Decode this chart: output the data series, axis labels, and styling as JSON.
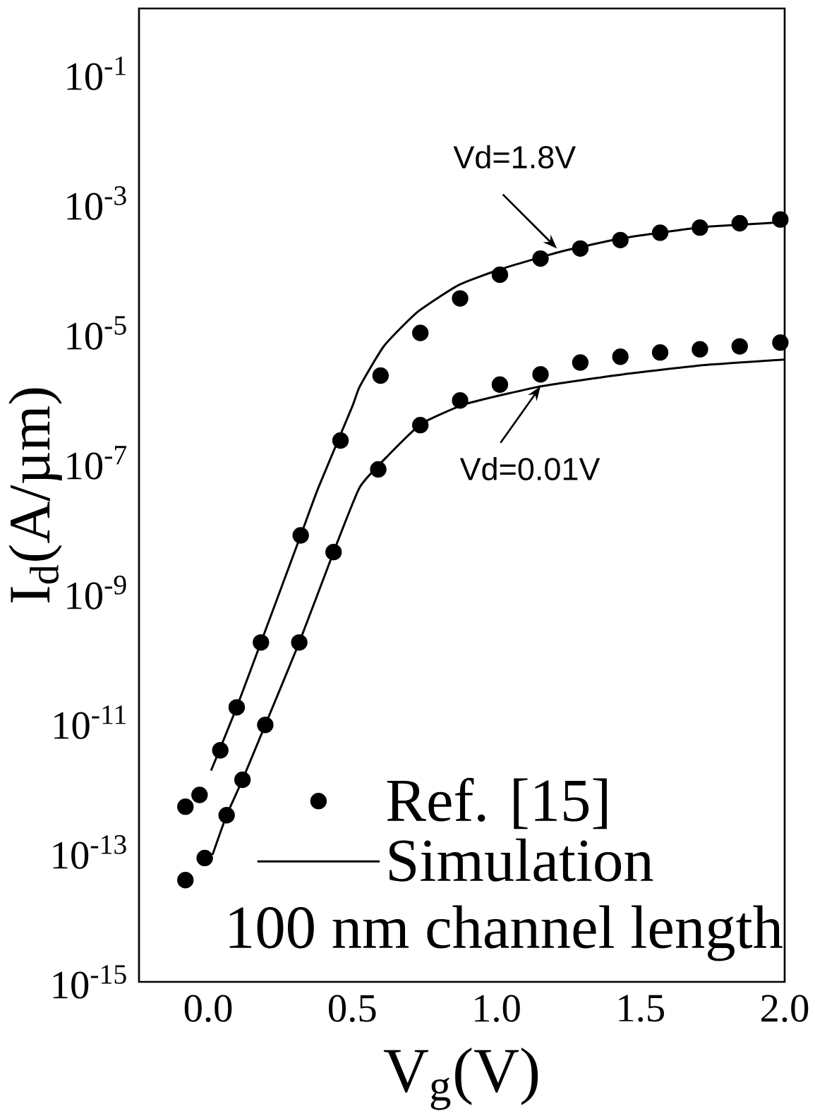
{
  "chart_data": {
    "type": "line",
    "xlabel": "V$_{g}$(V)",
    "ylabel": "I$_{d}$(A/µm)",
    "log": "y",
    "legend": "bottom",
    "xlim": [
      -0.24,
      2.0
    ],
    "xticks": [
      {
        "value": 0,
        "label": "0.0"
      },
      0.5,
      {
        "value": 1,
        "label": "1.0"
      },
      1.5,
      {
        "value": 2,
        "label": "2.0"
      }
    ],
    "ylim": [
      1e-15,
      1
    ],
    "yticks": [
      {
        "value": 1e-15,
        "label": "10$^{-15}$"
      },
      {
        "value": 1e-13,
        "label": "10$^{-13}$"
      },
      {
        "value": 1e-11,
        "label": "10$^{-11}$"
      },
      {
        "value": 1e-09,
        "label": "10$^{-9}$"
      },
      {
        "value": 1e-07,
        "label": "10$^{-7}$"
      },
      {
        "value": 1e-05,
        "label": "10$^{-5}$"
      },
      {
        "value": 0.001,
        "label": "10$^{-3}$"
      },
      {
        "value": 0.1,
        "label": "10$^{-1}$"
      }
    ],
    "series": [
      {
        "name": "Ref. [15]",
        "type": "scatter",
        "marker": "circle",
        "color": "#000000",
        "x": [
          -0.079,
          -0.03,
          0.042,
          0.099,
          0.183,
          0.321,
          0.459,
          0.598,
          0.736,
          0.874,
          1.012,
          1.153,
          1.291,
          1.43,
          1.568,
          1.706,
          1.844,
          1.985
        ],
        "values": [
          5e-13,
          7.6e-13,
          3.7e-12,
          1.7e-11,
          1.7e-10,
          7.6e-09,
          2.2e-07,
          2.2e-06,
          1e-05,
          3.4e-05,
          7.9e-05,
          0.00014,
          0.0002,
          0.00027,
          0.00035,
          0.00042,
          0.00049,
          0.00056
        ]
      },
      {
        "type": "scatter",
        "marker": "circle",
        "color": "#000000",
        "x": [
          -0.079,
          -0.012,
          0.064,
          0.119,
          0.198,
          0.316,
          0.435,
          0.59,
          0.736,
          0.874,
          1.012,
          1.153,
          1.291,
          1.43,
          1.568,
          1.706,
          1.844,
          1.985
        ],
        "values": [
          3.7e-14,
          8.1e-14,
          3.7e-13,
          1.3e-12,
          9.1e-12,
          1.7e-10,
          4.2e-09,
          7.9e-08,
          3.8e-07,
          9.1e-07,
          1.6e-06,
          2.3e-06,
          3.5e-06,
          4.3e-06,
          5e-06,
          5.6e-06,
          6.2e-06,
          7.1e-06
        ]
      },
      {
        "name": "Simulation",
        "marker": "none",
        "line_style": "solid",
        "color": "#000000",
        "x": [
          0.01,
          0.099,
          0.183,
          0.321,
          0.383,
          0.499,
          0.526,
          0.61,
          0.726,
          0.867,
          1.012,
          1.225,
          1.44,
          1.723,
          2.0
        ],
        "values": [
          1.8e-12,
          1.7e-11,
          1.7e-10,
          7.6e-09,
          4.2e-08,
          7.2e-07,
          1.5e-06,
          6.3e-06,
          2.1e-05,
          5.4e-05,
          9.5e-05,
          0.00018,
          0.00029,
          0.00043,
          0.00051
        ]
      },
      {
        "marker": "none",
        "line_style": "solid",
        "color": "#000000",
        "x": [
          0.015,
          0.064,
          0.119,
          0.198,
          0.316,
          0.435,
          0.526,
          0.625,
          0.741,
          0.896,
          1.153,
          1.44,
          1.723,
          2.0
        ],
        "values": [
          9.1e-14,
          3.7e-13,
          1.3e-12,
          9.1e-12,
          1.7e-10,
          4.2e-09,
          4.2e-08,
          1.3e-07,
          4e-07,
          8.1e-07,
          1.5e-06,
          2.3e-06,
          3.2e-06,
          3.9e-06
        ]
      }
    ],
    "annotations": [
      {
        "text": "Vd=1.8V",
        "x": 1.21,
        "y": 0.0002
      },
      {
        "text": "Vd=0.01V",
        "x": 1.153,
        "y": 1.5e-06
      },
      "100 nm channel length"
    ]
  }
}
